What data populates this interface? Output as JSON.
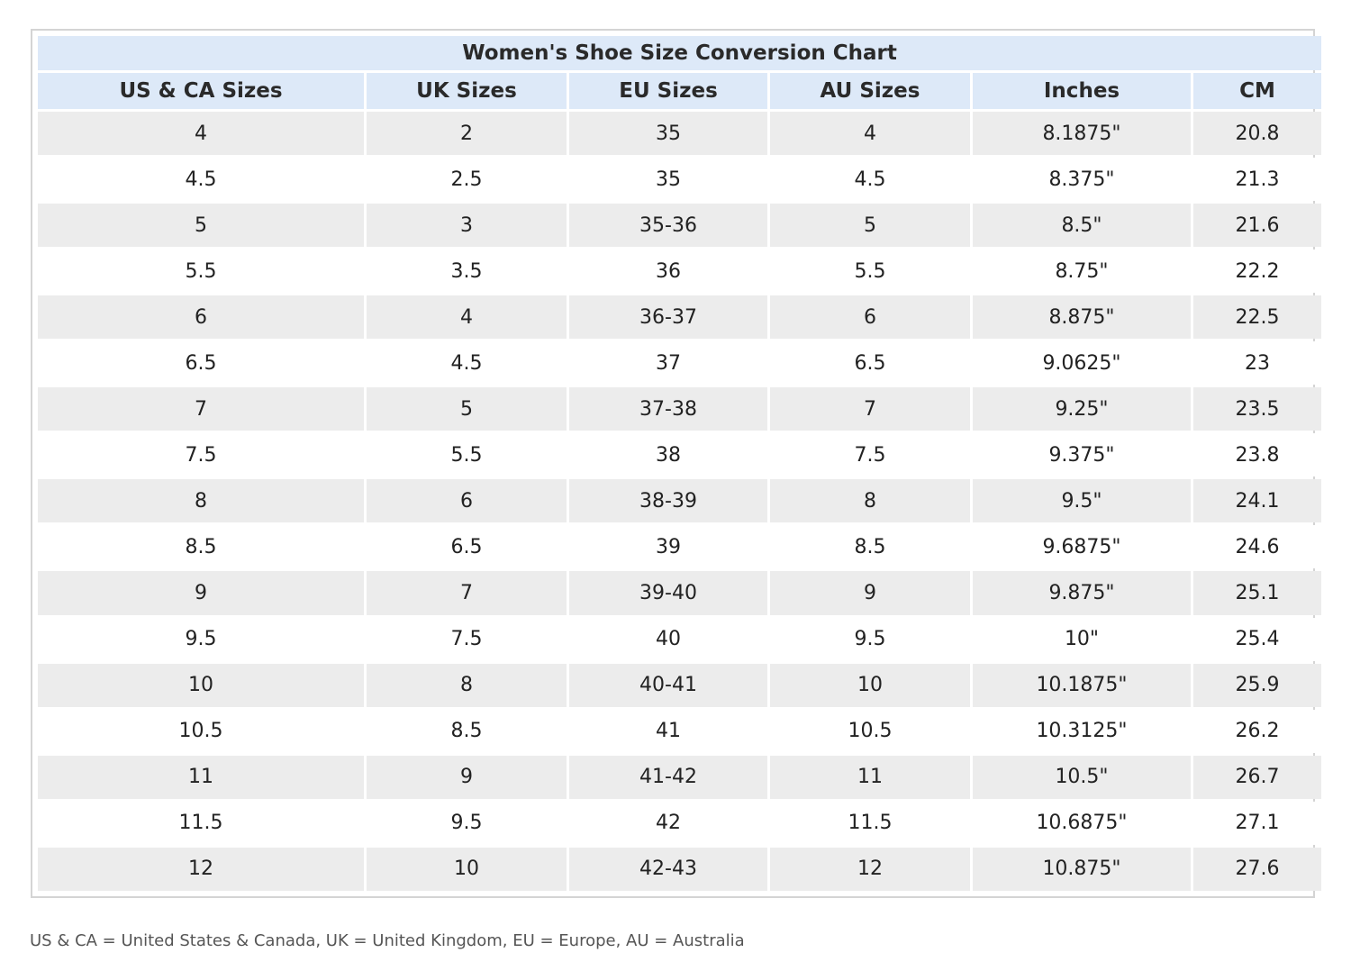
{
  "title": "Women's Shoe Size Conversion Chart",
  "columns": [
    "US & CA Sizes",
    "UK Sizes",
    "EU Sizes",
    "AU Sizes",
    "Inches",
    "CM"
  ],
  "rows": [
    [
      "4",
      "2",
      "35",
      "4",
      "8.1875\"",
      "20.8"
    ],
    [
      "4.5",
      "2.5",
      "35",
      "4.5",
      "8.375\"",
      "21.3"
    ],
    [
      "5",
      "3",
      "35-36",
      "5",
      "8.5\"",
      "21.6"
    ],
    [
      "5.5",
      "3.5",
      "36",
      "5.5",
      "8.75\"",
      "22.2"
    ],
    [
      "6",
      "4",
      "36-37",
      "6",
      "8.875\"",
      "22.5"
    ],
    [
      "6.5",
      "4.5",
      "37",
      "6.5",
      "9.0625\"",
      "23"
    ],
    [
      "7",
      "5",
      "37-38",
      "7",
      "9.25\"",
      "23.5"
    ],
    [
      "7.5",
      "5.5",
      "38",
      "7.5",
      "9.375\"",
      "23.8"
    ],
    [
      "8",
      "6",
      "38-39",
      "8",
      "9.5\"",
      "24.1"
    ],
    [
      "8.5",
      "6.5",
      "39",
      "8.5",
      "9.6875\"",
      "24.6"
    ],
    [
      "9",
      "7",
      "39-40",
      "9",
      "9.875\"",
      "25.1"
    ],
    [
      "9.5",
      "7.5",
      "40",
      "9.5",
      "10\"",
      "25.4"
    ],
    [
      "10",
      "8",
      "40-41",
      "10",
      "10.1875\"",
      "25.9"
    ],
    [
      "10.5",
      "8.5",
      "41",
      "10.5",
      "10.3125\"",
      "26.2"
    ],
    [
      "11",
      "9",
      "41-42",
      "11",
      "10.5\"",
      "26.7"
    ],
    [
      "11.5",
      "9.5",
      "42",
      "11.5",
      "10.6875\"",
      "27.1"
    ],
    [
      "12",
      "10",
      "42-43",
      "12",
      "10.875\"",
      "27.6"
    ]
  ],
  "footnote": "US & CA = United States & Canada, UK = United Kingdom, EU = Europe, AU = Australia",
  "colors": {
    "header_bg": "#dde9f8",
    "row_alt_bg": "#ececec",
    "border": "#d4d4d4"
  }
}
